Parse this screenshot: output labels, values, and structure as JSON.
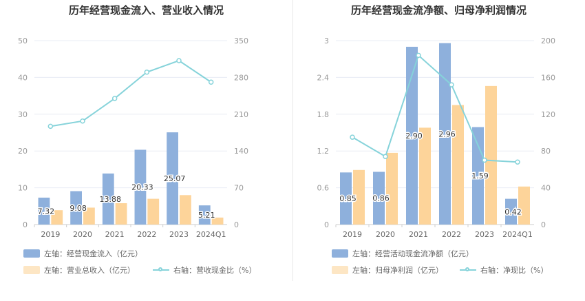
{
  "colors": {
    "bar1": "#8eb0dc",
    "bar2": "#fdd49a",
    "line": "#86d3da",
    "grid": "#e8ecf4",
    "axis": "#cccccc"
  },
  "chart_data": [
    {
      "type": "bar",
      "title": "历年经营现金流入、营业收入情况",
      "categories": [
        "2019",
        "2020",
        "2021",
        "2022",
        "2023",
        "2024Q1"
      ],
      "left_axis": {
        "min": 0,
        "max": 50,
        "ticks": [
          0,
          10,
          20,
          30,
          40,
          50
        ]
      },
      "right_axis": {
        "min": 0,
        "max": 350,
        "ticks": [
          0,
          70,
          140,
          210,
          280,
          350
        ]
      },
      "series": [
        {
          "name": "左轴：经营现金流入（亿元）",
          "type": "bar",
          "axis": "left",
          "values": [
            7.32,
            9.08,
            13.88,
            20.33,
            25.07,
            5.21
          ],
          "labels": [
            "7.32",
            "9.08",
            "13.88",
            "20.33",
            "25.07",
            "5.21"
          ]
        },
        {
          "name": "左轴：营业总收入（亿元）",
          "type": "bar",
          "axis": "left",
          "values": [
            3.9,
            4.6,
            5.8,
            7.0,
            8.0,
            1.9
          ]
        },
        {
          "name": "右轴：营收现金比（%）",
          "type": "line",
          "axis": "right",
          "values": [
            187,
            197,
            240,
            290,
            312,
            271
          ]
        }
      ],
      "grid": true,
      "legend_position": "bottom-left"
    },
    {
      "type": "bar",
      "title": "历年经营现金流净额、归母净利润情况",
      "categories": [
        "2019",
        "2020",
        "2021",
        "2022",
        "2023",
        "2024Q1"
      ],
      "left_axis": {
        "min": 0,
        "max": 3,
        "ticks": [
          0,
          0.6,
          1.2,
          1.8,
          2.4,
          3
        ]
      },
      "right_axis": {
        "min": 0,
        "max": 200,
        "ticks": [
          0,
          40,
          80,
          120,
          160,
          200
        ]
      },
      "series": [
        {
          "name": "左轴：经营活动现金流净额（亿元）",
          "type": "bar",
          "axis": "left",
          "values": [
            0.85,
            0.86,
            2.9,
            2.96,
            1.59,
            0.42
          ],
          "labels": [
            "0.85",
            "0.86",
            "2.90",
            "2.96",
            "1.59",
            "0.42"
          ]
        },
        {
          "name": "左轴：归母净利润（亿元）",
          "type": "bar",
          "axis": "left",
          "values": [
            0.89,
            1.17,
            1.58,
            1.95,
            2.26,
            0.62
          ]
        },
        {
          "name": "右轴：净现比（%）",
          "type": "line",
          "axis": "right",
          "values": [
            95,
            74,
            184,
            152,
            70,
            68
          ]
        }
      ],
      "grid": true,
      "legend_position": "bottom-left"
    }
  ]
}
